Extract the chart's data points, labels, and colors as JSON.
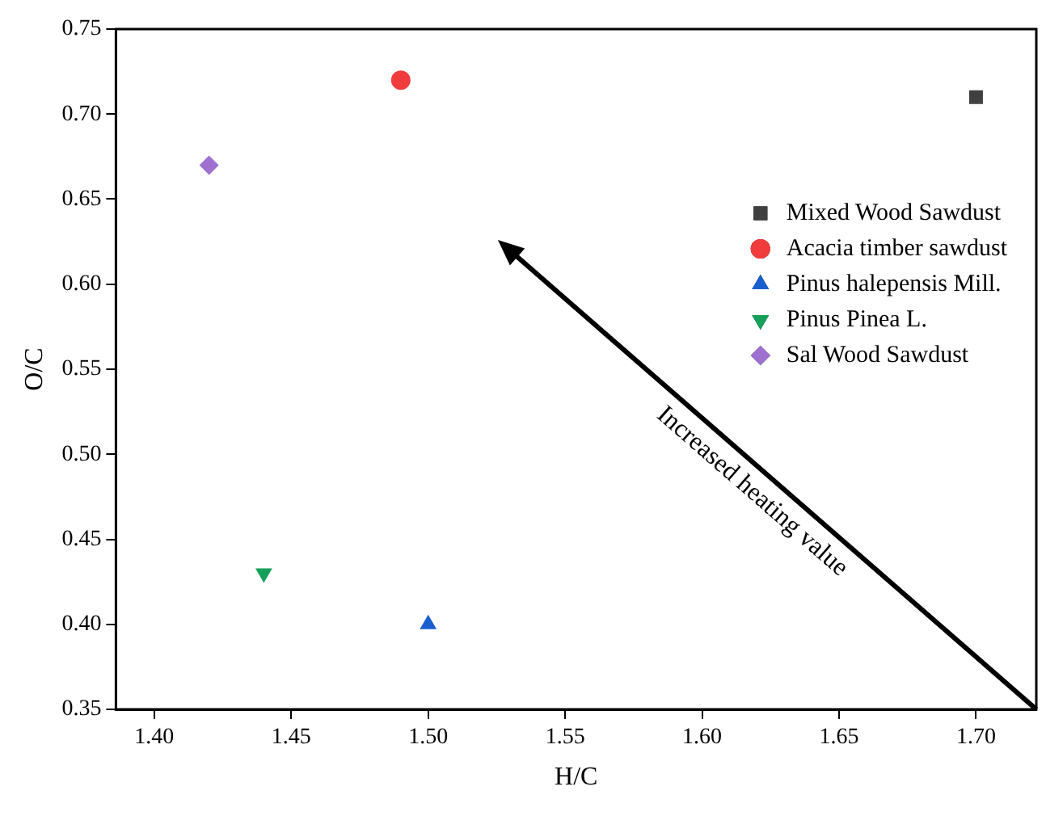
{
  "chart_data": {
    "type": "scatter",
    "xlabel": "H/C",
    "ylabel": "O/C",
    "series": [
      {
        "name": "Mixed Wood Sawdust",
        "color": "#404040",
        "marker": "square",
        "x": [
          1.7
        ],
        "values": [
          0.71
        ]
      },
      {
        "name": "Acacia timber sawdust",
        "color": "#f03c3c",
        "marker": "circle",
        "x": [
          1.49
        ],
        "values": [
          0.72
        ]
      },
      {
        "name": "Pinus halepensis Mill.",
        "color": "#1a5fd0",
        "marker": "triangle",
        "x": [
          1.5
        ],
        "values": [
          0.4
        ]
      },
      {
        "name": "Pinus Pinea L.",
        "color": "#16a05a",
        "marker": "triangle-down",
        "x": [
          1.44
        ],
        "values": [
          0.43
        ]
      },
      {
        "name": "Sal Wood Sawdust",
        "color": "#a070d0",
        "marker": "diamond",
        "x": [
          1.42
        ],
        "values": [
          0.67
        ]
      }
    ],
    "xlim": [
      1.386,
      1.722
    ],
    "xticks": [
      {
        "value": 1.4,
        "label": "1.40"
      },
      1.45,
      {
        "value": 1.5,
        "label": "1.50"
      },
      1.55,
      {
        "value": 1.6,
        "label": "1.60"
      },
      1.65,
      {
        "value": 1.7,
        "label": "1.70"
      }
    ],
    "ylim": [
      0.35,
      0.75
    ],
    "yticks": [
      0.35,
      {
        "value": 0.4,
        "label": "0.40"
      },
      0.45,
      {
        "value": 0.5,
        "label": "0.50"
      },
      0.55,
      {
        "value": 0.6,
        "label": "0.60"
      },
      0.65,
      {
        "value": 0.7,
        "label": "0.70"
      },
      0.75
    ],
    "grid": false,
    "legend": "top right",
    "annotations": [
      "Increased heating value"
    ]
  }
}
